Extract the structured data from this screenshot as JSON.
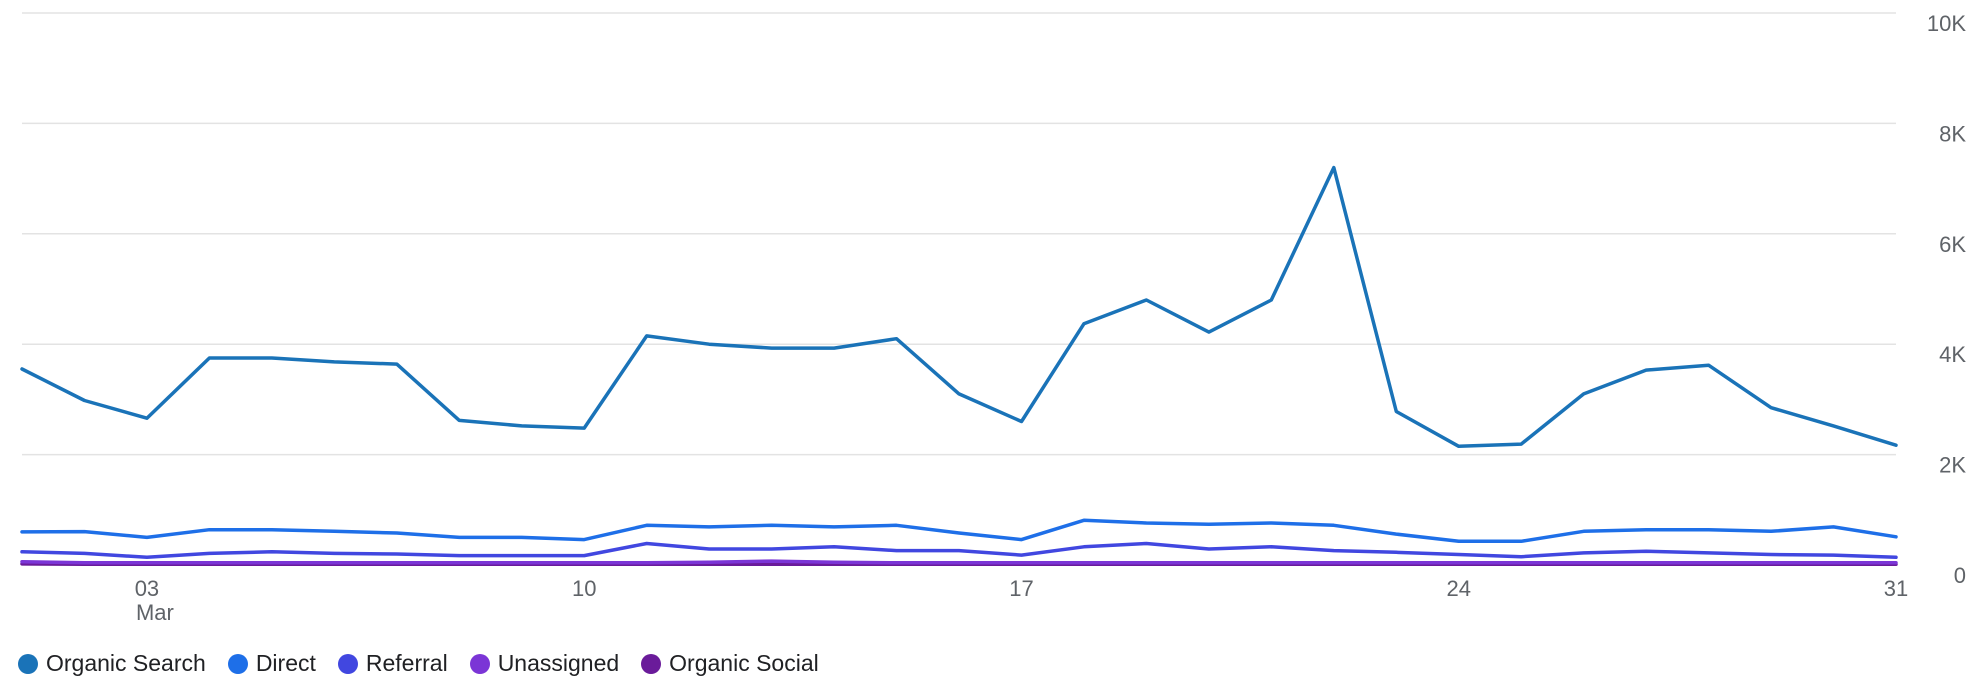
{
  "chart_data": {
    "type": "line",
    "x": [
      "Mar 1",
      "Mar 2",
      "Mar 3",
      "Mar 4",
      "Mar 5",
      "Mar 6",
      "Mar 7",
      "Mar 8",
      "Mar 9",
      "Mar 10",
      "Mar 11",
      "Mar 12",
      "Mar 13",
      "Mar 14",
      "Mar 15",
      "Mar 16",
      "Mar 17",
      "Mar 18",
      "Mar 19",
      "Mar 20",
      "Mar 21",
      "Mar 22",
      "Mar 23",
      "Mar 24",
      "Mar 25",
      "Mar 26",
      "Mar 27",
      "Mar 28",
      "Mar 29",
      "Mar 30",
      "Mar 31"
    ],
    "x_ticks": [
      {
        "index": 2,
        "label": "03",
        "sublabel": "Mar"
      },
      {
        "index": 9,
        "label": "10",
        "sublabel": ""
      },
      {
        "index": 16,
        "label": "17",
        "sublabel": ""
      },
      {
        "index": 23,
        "label": "24",
        "sublabel": ""
      },
      {
        "index": 30,
        "label": "31",
        "sublabel": ""
      }
    ],
    "y_ticks": [
      {
        "value": 0,
        "label": "0"
      },
      {
        "value": 2000,
        "label": "2K"
      },
      {
        "value": 4000,
        "label": "4K"
      },
      {
        "value": 6000,
        "label": "6K"
      },
      {
        "value": 8000,
        "label": "8K"
      },
      {
        "value": 10000,
        "label": "10K"
      }
    ],
    "ylim": [
      0,
      10000
    ],
    "y_axis_position": "right",
    "grid": true,
    "legend_position": "bottom-left",
    "series": [
      {
        "name": "Organic Search",
        "color": "#1a73b8",
        "values": [
          3550,
          2980,
          2660,
          3750,
          3750,
          3680,
          3640,
          2620,
          2520,
          2480,
          4150,
          4000,
          3930,
          3930,
          4100,
          3100,
          2600,
          4370,
          4800,
          4220,
          4800,
          7200,
          2780,
          2150,
          2190,
          3100,
          3530,
          3620,
          2850,
          2520,
          2170
        ]
      },
      {
        "name": "Direct",
        "color": "#1e6fe8",
        "values": [
          600,
          605,
          500,
          640,
          640,
          610,
          580,
          500,
          500,
          460,
          720,
          690,
          720,
          690,
          720,
          580,
          460,
          810,
          760,
          740,
          760,
          720,
          560,
          430,
          430,
          610,
          640,
          640,
          610,
          690,
          510
        ]
      },
      {
        "name": "Referral",
        "color": "#4147e0",
        "values": [
          240,
          210,
          140,
          210,
          240,
          210,
          200,
          170,
          170,
          170,
          390,
          290,
          290,
          330,
          260,
          260,
          180,
          330,
          390,
          290,
          330,
          260,
          230,
          190,
          150,
          220,
          250,
          220,
          190,
          180,
          140
        ]
      },
      {
        "name": "Unassigned",
        "color": "#7b35d6",
        "values": [
          60,
          40,
          40,
          40,
          40,
          40,
          40,
          40,
          40,
          40,
          40,
          50,
          70,
          50,
          40,
          40,
          40,
          40,
          40,
          40,
          40,
          40,
          40,
          40,
          40,
          40,
          40,
          40,
          40,
          40,
          40
        ]
      },
      {
        "name": "Organic Social",
        "color": "#6a1b9a",
        "values": [
          20,
          15,
          15,
          15,
          15,
          15,
          15,
          15,
          15,
          15,
          15,
          15,
          15,
          15,
          15,
          15,
          15,
          15,
          15,
          15,
          15,
          15,
          15,
          15,
          15,
          15,
          15,
          15,
          15,
          15,
          15
        ]
      }
    ]
  }
}
